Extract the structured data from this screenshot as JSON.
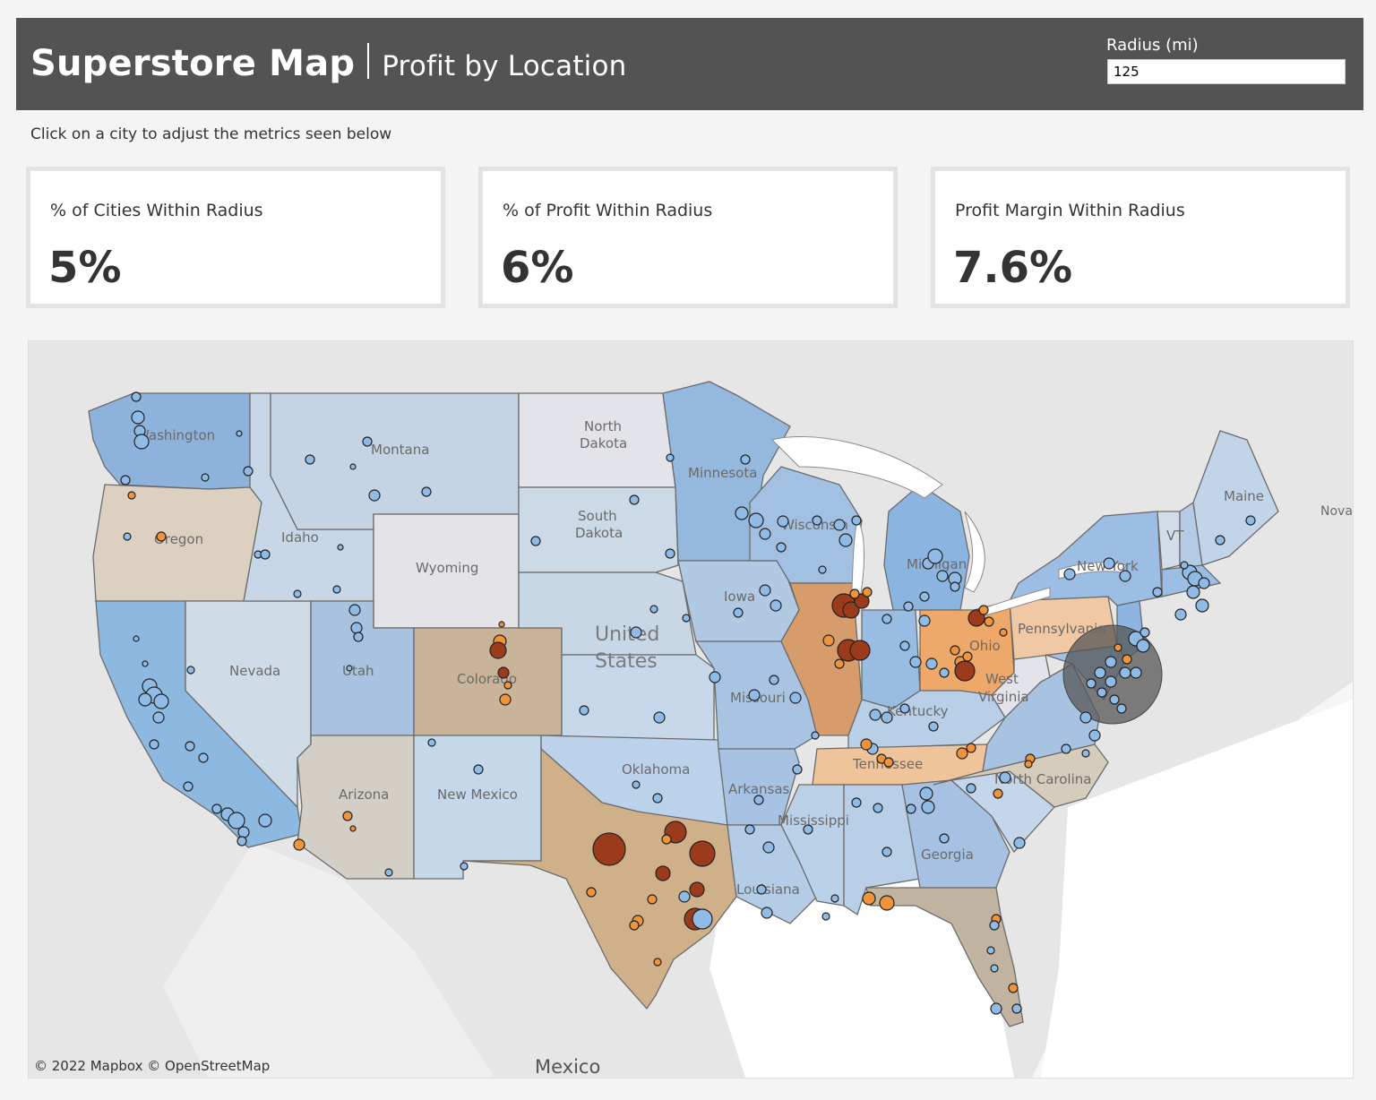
{
  "header": {
    "title": "Superstore Map",
    "subtitle": "Profit by Location",
    "radius_label": "Radius (mi)",
    "radius_value": "125"
  },
  "instruction": "Click on a city to adjust the metrics seen below",
  "kpis": [
    {
      "label": "% of Cities Within Radius",
      "value": "5%"
    },
    {
      "label": "% of Profit Within Radius",
      "value": "6%"
    },
    {
      "label": "Profit Margin Within Radius",
      "value": "7.6%"
    }
  ],
  "map": {
    "attribution": "© 2022 Mapbox  © OpenStreetMap",
    "country_label": "United States",
    "mexico_label": "Mexico",
    "nova_label": "Nova",
    "colors": {
      "land": "#e4e4e4",
      "water": "#ffffff",
      "border": "#6b6b6b",
      "blue_dot": "#8fbbe6",
      "orange_dot": "#f0943c",
      "red_dot": "#9c3a1c",
      "radius_circle": "#555555"
    },
    "states": [
      {
        "name": "Washington",
        "fill": "#8db3dc"
      },
      {
        "name": "Oregon",
        "fill": "#dcd0c0"
      },
      {
        "name": "California",
        "fill": "#8db8e0"
      },
      {
        "name": "Nevada",
        "fill": "#cfdce8"
      },
      {
        "name": "Idaho",
        "fill": "#c7d7e7"
      },
      {
        "name": "Montana",
        "fill": "#c4d4e4"
      },
      {
        "name": "Wyoming",
        "fill": "#e4e4e8"
      },
      {
        "name": "Utah",
        "fill": "#a8c2df"
      },
      {
        "name": "Arizona",
        "fill": "#d4cfc6"
      },
      {
        "name": "Colorado",
        "fill": "#c9b49a"
      },
      {
        "name": "New Mexico",
        "fill": "#c5d8ea"
      },
      {
        "name": "North Dakota",
        "fill": "#e2e4e9"
      },
      {
        "name": "South Dakota",
        "fill": "#ccd9e6"
      },
      {
        "name": "Nebraska",
        "fill": "#c8d7e6"
      },
      {
        "name": "Kansas",
        "fill": "#c6d8ea"
      },
      {
        "name": "Oklahoma",
        "fill": "#bcd2ea"
      },
      {
        "name": "Texas",
        "fill": "#cfb089"
      },
      {
        "name": "Minnesota",
        "fill": "#94b8de"
      },
      {
        "name": "Iowa",
        "fill": "#b1c9e3"
      },
      {
        "name": "Missouri",
        "fill": "#a9c3e2"
      },
      {
        "name": "Arkansas",
        "fill": "#a7c2e2"
      },
      {
        "name": "Louisiana",
        "fill": "#b4cce6"
      },
      {
        "name": "Wisconsin",
        "fill": "#a2c0e2"
      },
      {
        "name": "Illinois",
        "fill": "#d69c6c"
      },
      {
        "name": "Michigan",
        "fill": "#8cb4e0"
      },
      {
        "name": "Indiana",
        "fill": "#98bce2"
      },
      {
        "name": "Ohio",
        "fill": "#eea869"
      },
      {
        "name": "Kentucky",
        "fill": "#b8cfe7"
      },
      {
        "name": "Tennessee",
        "fill": "#f0c49a"
      },
      {
        "name": "Mississippi",
        "fill": "#bbd1e8"
      },
      {
        "name": "Alabama",
        "fill": "#b9cfe7"
      },
      {
        "name": "Georgia",
        "fill": "#a6c1e2"
      },
      {
        "name": "Florida",
        "fill": "#c0b4a0"
      },
      {
        "name": "South Carolina",
        "fill": "#c4d6ea"
      },
      {
        "name": "North Carolina",
        "fill": "#d6ccbc"
      },
      {
        "name": "Virginia",
        "fill": "#a8c3e2"
      },
      {
        "name": "West Virginia",
        "fill": "#e2e4e9"
      },
      {
        "name": "Pennsylvania",
        "fill": "#f0c8a4"
      },
      {
        "name": "New York",
        "fill": "#9cbee4"
      },
      {
        "name": "Maine",
        "fill": "#c2d4e8"
      },
      {
        "name": "Vermont",
        "fill": "#d2dde9"
      },
      {
        "name": "New Hampshire",
        "fill": "#b5cbe5"
      },
      {
        "name": "Massachusetts",
        "fill": "#9cbee4"
      },
      {
        "name": "New Jersey",
        "fill": "#8db5e0"
      },
      {
        "name": "Maryland",
        "fill": "#a0bfe3"
      }
    ],
    "state_labels": {
      "washington": "Washington",
      "oregon": "Oregon",
      "montana": "Montana",
      "idaho": "Idaho",
      "wyoming": "Wyoming",
      "nevada": "Nevada",
      "utah": "Utah",
      "colorado": "Colorado",
      "arizona": "Arizona",
      "new_mexico": "New Mexico",
      "north_dakota_1": "North",
      "north_dakota_2": "Dakota",
      "south_dakota_1": "South",
      "south_dakota_2": "Dakota",
      "minnesota": "Minnesota",
      "iowa": "Iowa",
      "missouri": "Missouri",
      "oklahoma": "Oklahoma",
      "arkansas": "Arkansas",
      "mississippi": "Mississippi",
      "louisiana": "Louisiana",
      "wisconsin": "Wisconsin",
      "michigan": "Michigan",
      "kentucky": "Kentucky",
      "tennessee": "Tennessee",
      "georgia": "Georgia",
      "ohio": "Ohio",
      "west_virginia_1": "West",
      "west_virginia_2": "Virginia",
      "pennsylvania": "Pennsylvania",
      "new_york": "New York",
      "maine": "Maine",
      "vermont": "VT",
      "north_carolina": "North Carolina",
      "united": "United",
      "states": "States"
    }
  }
}
